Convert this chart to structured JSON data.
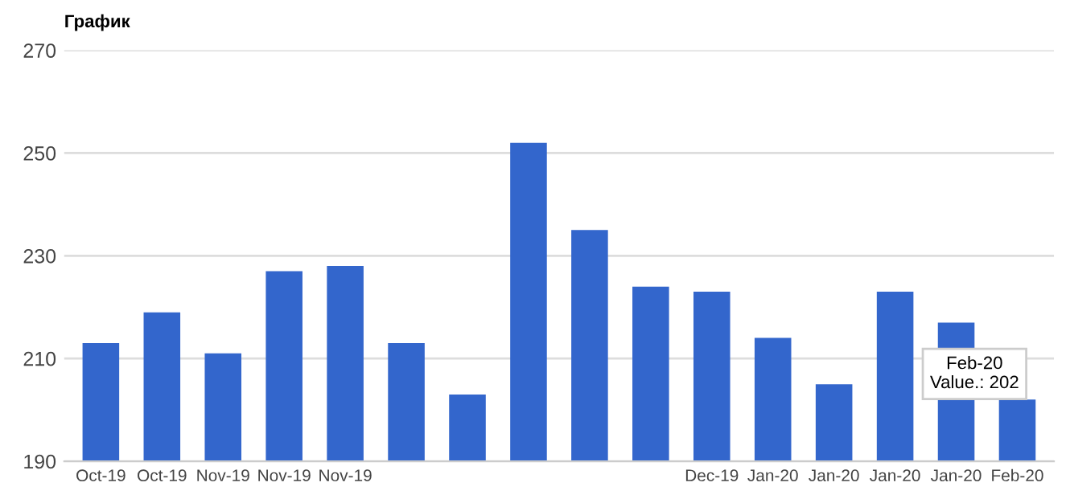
{
  "chart_data": {
    "type": "bar",
    "title": "График",
    "categories": [
      "Oct-19",
      "Oct-19",
      "Nov-19",
      "Nov-19",
      "Nov-19",
      null,
      null,
      null,
      null,
      null,
      "Dec-19",
      "Jan-20",
      "Jan-20",
      "Jan-20",
      "Jan-20",
      "Feb-20"
    ],
    "values": [
      213,
      219,
      211,
      227,
      228,
      213,
      203,
      252,
      235,
      224,
      223,
      214,
      205,
      223,
      217,
      202
    ],
    "color": "#3366cc",
    "ylim": [
      190,
      270
    ],
    "yticks": [
      190,
      210,
      230,
      250,
      270
    ],
    "grid": "y",
    "legend": false,
    "annotations": [
      {
        "text": "Feb-20\nValue.: 202",
        "x": "Feb-20",
        "y": 202
      }
    ]
  }
}
